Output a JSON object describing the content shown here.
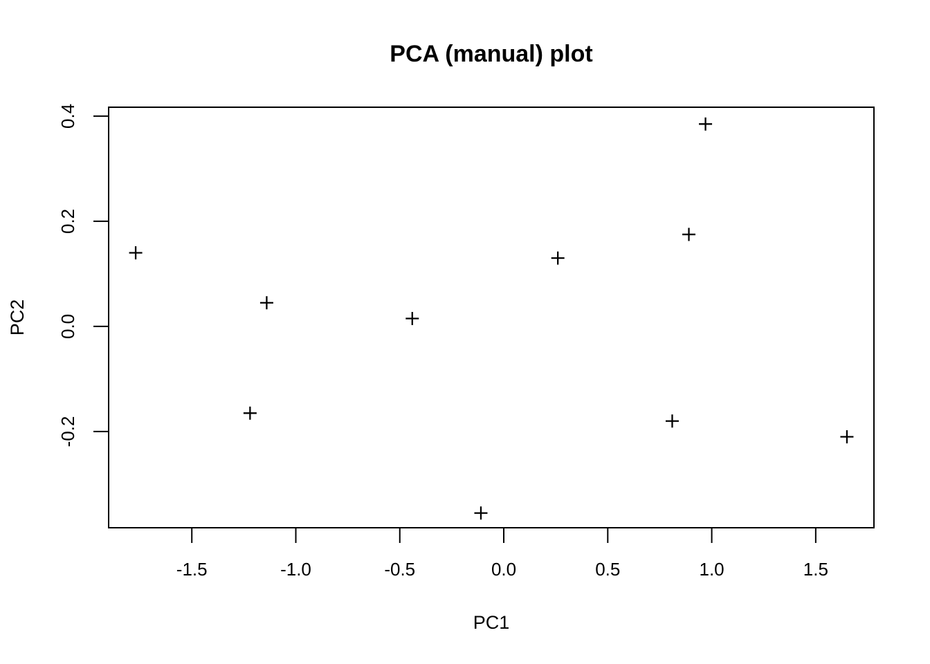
{
  "figure": {
    "background_color": "#ffffff",
    "foreground_color": "#000000"
  },
  "chart_data": {
    "type": "scatter",
    "title": "PCA (manual) plot",
    "xlabel": "PC1",
    "ylabel": "PC2",
    "marker": "plus-cross",
    "marker_color": "#000000",
    "grid": false,
    "legend": null,
    "xlim": [
      -1.9,
      1.78
    ],
    "ylim": [
      -0.383,
      0.417
    ],
    "x_ticks": [
      -1.5,
      -1.0,
      -0.5,
      0.0,
      0.5,
      1.0,
      1.5
    ],
    "x_tick_labels": [
      "-1.5",
      "-1.0",
      "-0.5",
      "0.0",
      "0.5",
      "1.0",
      "1.5"
    ],
    "y_ticks": [
      -0.2,
      0.0,
      0.2,
      0.4
    ],
    "y_tick_labels": [
      "-0.2",
      "0.0",
      "0.2",
      "0.4"
    ],
    "points": [
      {
        "x": -1.77,
        "y": 0.14
      },
      {
        "x": -1.22,
        "y": -0.165
      },
      {
        "x": -1.14,
        "y": 0.045
      },
      {
        "x": -0.44,
        "y": 0.015
      },
      {
        "x": -0.11,
        "y": -0.355
      },
      {
        "x": 0.26,
        "y": 0.13
      },
      {
        "x": 0.81,
        "y": -0.18
      },
      {
        "x": 0.89,
        "y": 0.175
      },
      {
        "x": 0.97,
        "y": 0.385
      },
      {
        "x": 1.65,
        "y": -0.21
      }
    ]
  }
}
